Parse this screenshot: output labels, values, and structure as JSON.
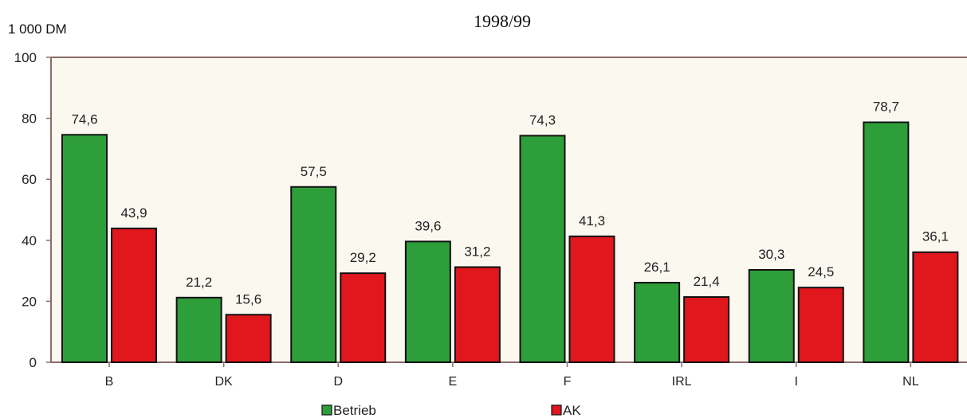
{
  "chart_data": {
    "type": "bar",
    "title": "1998/99",
    "ylabel": "1 000 DM",
    "categories": [
      "B",
      "DK",
      "D",
      "E",
      "F",
      "IRL",
      "I",
      "NL"
    ],
    "series": [
      {
        "name": "Betrieb",
        "values": [
          74.6,
          21.2,
          57.5,
          39.6,
          74.3,
          26.1,
          30.3,
          78.7
        ],
        "labels": [
          "74,6",
          "21,2",
          "57,5",
          "39,6",
          "74,3",
          "26,1",
          "30,3",
          "78,7"
        ],
        "color": "#2e9e3a"
      },
      {
        "name": "AK",
        "values": [
          43.9,
          15.6,
          29.2,
          31.2,
          41.3,
          21.4,
          24.5,
          36.1
        ],
        "labels": [
          "43,9",
          "15,6",
          "29,2",
          "31,2",
          "41,3",
          "21,4",
          "24,5",
          "36,1"
        ],
        "color": "#e0171d"
      }
    ],
    "ylim": [
      0,
      100
    ],
    "yticks": [
      0,
      20,
      40,
      60,
      80,
      100
    ],
    "grid": false,
    "legend_position": "bottom"
  }
}
